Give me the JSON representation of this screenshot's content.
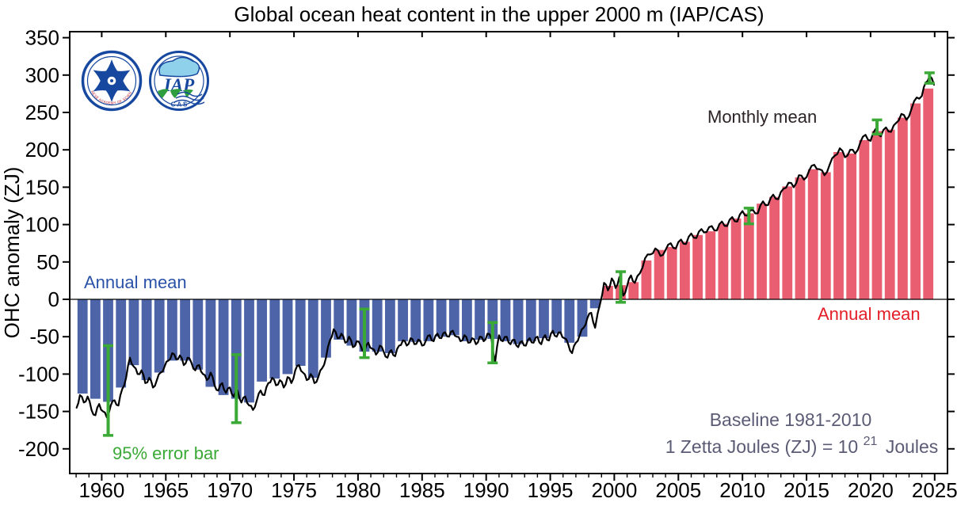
{
  "window": {
    "title": "Global ocean heat content in the upper 2000 m (IAP/CAS)"
  },
  "labels": {
    "annual_mean_blue": "Annual mean",
    "monthly_mean": "Monthly mean",
    "annual_mean_red": "Annual mean",
    "baseline_note": "Baseline 1981-2010",
    "zetta_prefix": "1 Zetta Joules (ZJ) = 10",
    "zetta_exp": "21",
    "zetta_suffix": "Joules",
    "error_bar_note": "95% error bar"
  },
  "logos": {
    "cas": {
      "ring_text": "CHINESE ACADEMY OF SCIENCES",
      "top_text": "中国科学院"
    },
    "iap": {
      "acronym": "IAP",
      "bottom_text": "C A S",
      "ring_text": "中国科学院大气物理研究所"
    }
  },
  "colors": {
    "bar_negative": "#4d64a8",
    "bar_positive": "#ea5e72",
    "blue_text": "#2a52a8",
    "red_text": "#e31e26",
    "green": "#3aa935",
    "slate_text": "#5b5b75",
    "monthly_text": "#2a2226",
    "line": "#000000",
    "axis": "#000000",
    "logo_blue": "#17489f",
    "logo_light_blue": "#8fd0ea",
    "logo_green": "#2f9e3f",
    "logo_red": "#c01820"
  },
  "chart_data": {
    "type": "bar+line",
    "title": "Global ocean heat content in the upper 2000 m (IAP/CAS)",
    "xlabel": "",
    "ylabel": "OHC anomaly (ZJ)",
    "xlim": [
      1957.5,
      2026
    ],
    "ylim": [
      -233,
      358
    ],
    "yticks": [
      -200,
      -150,
      -100,
      -50,
      0,
      50,
      100,
      150,
      200,
      250,
      300,
      350
    ],
    "xticks": [
      1960,
      1965,
      1970,
      1975,
      1980,
      1985,
      1990,
      1995,
      2000,
      2005,
      2010,
      2015,
      2020,
      2025
    ],
    "grid": false,
    "bar_series": {
      "name": "Annual mean",
      "start_year": 1958,
      "values": [
        -126,
        -133,
        -137,
        -118,
        -88,
        -108,
        -98,
        -82,
        -82,
        -94,
        -117,
        -128,
        -133,
        -138,
        -110,
        -106,
        -100,
        -89,
        -105,
        -78,
        -54,
        -62,
        -70,
        -70,
        -72,
        -56,
        -57,
        -56,
        -50,
        -48,
        -56,
        -54,
        -53,
        -56,
        -60,
        -56,
        -52,
        -46,
        -58,
        -50,
        -12,
        18,
        19,
        23,
        52,
        66,
        70,
        77,
        86,
        91,
        101,
        108,
        115,
        128,
        137,
        151,
        163,
        174,
        170,
        197,
        195,
        213,
        225,
        227,
        243,
        262,
        282
      ]
    },
    "line_series": {
      "name": "Monthly mean",
      "points": [
        [
          1958.04,
          -145
        ],
        [
          1958.3,
          -128
        ],
        [
          1958.6,
          -138
        ],
        [
          1958.9,
          -130
        ],
        [
          1959.2,
          -148
        ],
        [
          1959.5,
          -155
        ],
        [
          1959.8,
          -140
        ],
        [
          1960.1,
          -150
        ],
        [
          1960.4,
          -158
        ],
        [
          1960.7,
          -142
        ],
        [
          1961.0,
          -135
        ],
        [
          1961.3,
          -142
        ],
        [
          1961.6,
          -120
        ],
        [
          1961.9,
          -105
        ],
        [
          1962.2,
          -78
        ],
        [
          1962.5,
          -90
        ],
        [
          1962.8,
          -100
        ],
        [
          1963.1,
          -95
        ],
        [
          1963.4,
          -112
        ],
        [
          1963.7,
          -105
        ],
        [
          1964.0,
          -118
        ],
        [
          1964.3,
          -108
        ],
        [
          1964.6,
          -98
        ],
        [
          1964.9,
          -90
        ],
        [
          1965.2,
          -82
        ],
        [
          1965.5,
          -72
        ],
        [
          1965.8,
          -80
        ],
        [
          1966.1,
          -75
        ],
        [
          1966.4,
          -88
        ],
        [
          1966.7,
          -78
        ],
        [
          1967.0,
          -85
        ],
        [
          1967.3,
          -95
        ],
        [
          1967.6,
          -88
        ],
        [
          1967.9,
          -100
        ],
        [
          1968.2,
          -108
        ],
        [
          1968.5,
          -98
        ],
        [
          1968.8,
          -115
        ],
        [
          1969.1,
          -122
        ],
        [
          1969.4,
          -112
        ],
        [
          1969.7,
          -125
        ],
        [
          1970.0,
          -118
        ],
        [
          1970.3,
          -130
        ],
        [
          1970.6,
          -122
        ],
        [
          1970.9,
          -138
        ],
        [
          1971.2,
          -130
        ],
        [
          1971.5,
          -142
        ],
        [
          1971.8,
          -148
        ],
        [
          1972.1,
          -135
        ],
        [
          1972.4,
          -122
        ],
        [
          1972.7,
          -128
        ],
        [
          1973.0,
          -112
        ],
        [
          1973.3,
          -105
        ],
        [
          1973.6,
          -115
        ],
        [
          1973.9,
          -108
        ],
        [
          1974.2,
          -118
        ],
        [
          1974.5,
          -104
        ],
        [
          1974.8,
          -112
        ],
        [
          1975.1,
          -95
        ],
        [
          1975.4,
          -88
        ],
        [
          1975.7,
          -98
        ],
        [
          1976.0,
          -108
        ],
        [
          1976.3,
          -100
        ],
        [
          1976.6,
          -112
        ],
        [
          1976.9,
          -104
        ],
        [
          1977.2,
          -92
        ],
        [
          1977.5,
          -78
        ],
        [
          1977.8,
          -55
        ],
        [
          1978.1,
          -40
        ],
        [
          1978.4,
          -52
        ],
        [
          1978.7,
          -46
        ],
        [
          1979.0,
          -58
        ],
        [
          1979.3,
          -50
        ],
        [
          1979.6,
          -64
        ],
        [
          1979.9,
          -56
        ],
        [
          1980.2,
          -62
        ],
        [
          1980.5,
          -70
        ],
        [
          1980.8,
          -58
        ],
        [
          1981.1,
          -66
        ],
        [
          1981.4,
          -74
        ],
        [
          1981.7,
          -62
        ],
        [
          1982.0,
          -70
        ],
        [
          1982.3,
          -78
        ],
        [
          1982.6,
          -68
        ],
        [
          1982.9,
          -76
        ],
        [
          1983.2,
          -62
        ],
        [
          1983.5,
          -55
        ],
        [
          1983.8,
          -62
        ],
        [
          1984.1,
          -52
        ],
        [
          1984.4,
          -60
        ],
        [
          1984.7,
          -54
        ],
        [
          1985.0,
          -62
        ],
        [
          1985.3,
          -55
        ],
        [
          1985.6,
          -48
        ],
        [
          1985.9,
          -56
        ],
        [
          1986.2,
          -46
        ],
        [
          1986.5,
          -52
        ],
        [
          1986.8,
          -44
        ],
        [
          1987.1,
          -50
        ],
        [
          1987.4,
          -42
        ],
        [
          1987.7,
          -50
        ],
        [
          1988.0,
          -56
        ],
        [
          1988.3,
          -48
        ],
        [
          1988.6,
          -58
        ],
        [
          1988.9,
          -52
        ],
        [
          1989.2,
          -60
        ],
        [
          1989.5,
          -50
        ],
        [
          1989.8,
          -56
        ],
        [
          1990.1,
          -46
        ],
        [
          1990.4,
          -52
        ],
        [
          1990.7,
          -84
        ],
        [
          1991.0,
          -48
        ],
        [
          1991.3,
          -56
        ],
        [
          1991.6,
          -50
        ],
        [
          1991.9,
          -60
        ],
        [
          1992.2,
          -54
        ],
        [
          1992.5,
          -64
        ],
        [
          1992.8,
          -56
        ],
        [
          1993.1,
          -62
        ],
        [
          1993.4,
          -52
        ],
        [
          1993.7,
          -58
        ],
        [
          1994.0,
          -50
        ],
        [
          1994.3,
          -60
        ],
        [
          1994.6,
          -48
        ],
        [
          1994.9,
          -55
        ],
        [
          1995.2,
          -42
        ],
        [
          1995.5,
          -50
        ],
        [
          1995.8,
          -44
        ],
        [
          1996.1,
          -52
        ],
        [
          1996.4,
          -60
        ],
        [
          1996.7,
          -72
        ],
        [
          1997.0,
          -58
        ],
        [
          1997.3,
          -48
        ],
        [
          1997.6,
          -38
        ],
        [
          1997.9,
          -25
        ],
        [
          1998.2,
          -18
        ],
        [
          1998.5,
          -38
        ],
        [
          1998.9,
          -5
        ],
        [
          1999.2,
          22
        ],
        [
          1999.5,
          12
        ],
        [
          1999.8,
          28
        ],
        [
          2000.1,
          15
        ],
        [
          2000.4,
          30
        ],
        [
          2000.7,
          5
        ],
        [
          2001.0,
          18
        ],
        [
          2001.3,
          32
        ],
        [
          2001.6,
          22
        ],
        [
          2002.0,
          35
        ],
        [
          2002.4,
          55
        ],
        [
          2002.8,
          60
        ],
        [
          2003.2,
          68
        ],
        [
          2003.6,
          58
        ],
        [
          2004.0,
          66
        ],
        [
          2004.4,
          75
        ],
        [
          2004.8,
          68
        ],
        [
          2005.2,
          80
        ],
        [
          2005.6,
          74
        ],
        [
          2006.0,
          88
        ],
        [
          2006.4,
          82
        ],
        [
          2006.8,
          94
        ],
        [
          2007.2,
          90
        ],
        [
          2007.6,
          98
        ],
        [
          2008.0,
          92
        ],
        [
          2008.4,
          104
        ],
        [
          2008.8,
          98
        ],
        [
          2009.2,
          110
        ],
        [
          2009.6,
          104
        ],
        [
          2010.0,
          118
        ],
        [
          2010.4,
          112
        ],
        [
          2010.8,
          120
        ],
        [
          2011.2,
          115
        ],
        [
          2011.6,
          131
        ],
        [
          2012.0,
          126
        ],
        [
          2012.4,
          140
        ],
        [
          2012.8,
          134
        ],
        [
          2013.2,
          148
        ],
        [
          2013.6,
          156
        ],
        [
          2014.0,
          150
        ],
        [
          2014.4,
          166
        ],
        [
          2014.8,
          160
        ],
        [
          2015.2,
          172
        ],
        [
          2015.6,
          180
        ],
        [
          2016.0,
          174
        ],
        [
          2016.4,
          166
        ],
        [
          2016.8,
          180
        ],
        [
          2017.2,
          192
        ],
        [
          2017.6,
          202
        ],
        [
          2018.0,
          190
        ],
        [
          2018.4,
          200
        ],
        [
          2018.8,
          195
        ],
        [
          2019.2,
          210
        ],
        [
          2019.6,
          220
        ],
        [
          2020.0,
          212
        ],
        [
          2020.4,
          228
        ],
        [
          2020.8,
          218
        ],
        [
          2021.2,
          230
        ],
        [
          2021.6,
          224
        ],
        [
          2022.0,
          236
        ],
        [
          2022.4,
          248
        ],
        [
          2022.8,
          240
        ],
        [
          2023.2,
          255
        ],
        [
          2023.6,
          270
        ],
        [
          2024.0,
          272
        ],
        [
          2024.3,
          290
        ],
        [
          2024.6,
          299
        ],
        [
          2024.95,
          287
        ]
      ]
    },
    "error_bars": {
      "name": "95% error bar",
      "points": [
        {
          "year": 1960.5,
          "low": -182,
          "high": -62
        },
        {
          "year": 1970.5,
          "low": -165,
          "high": -74
        },
        {
          "year": 1980.5,
          "low": -78,
          "high": -13
        },
        {
          "year": 1990.5,
          "low": -85,
          "high": -31
        },
        {
          "year": 2000.5,
          "low": -4,
          "high": 37
        },
        {
          "year": 2010.5,
          "low": 101,
          "high": 122
        },
        {
          "year": 2020.5,
          "low": 221,
          "high": 240
        },
        {
          "year": 2024.6,
          "low": 289,
          "high": 303
        }
      ]
    }
  }
}
